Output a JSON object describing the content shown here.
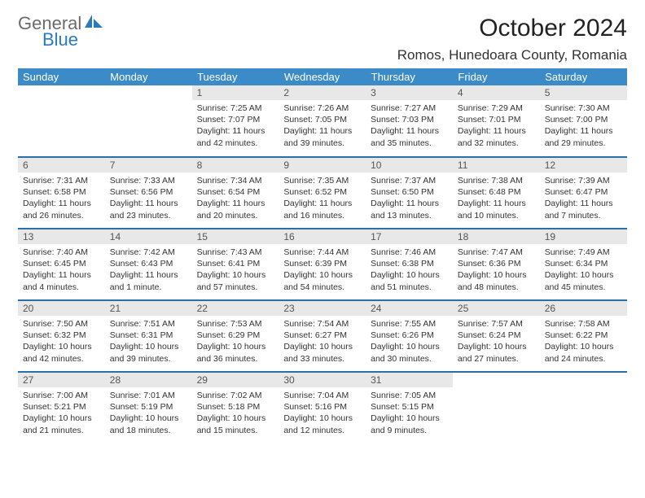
{
  "brand": {
    "line1": "General",
    "line2": "Blue",
    "text_color": "#6b6b6b",
    "accent_color": "#2a7ac0"
  },
  "title": "October 2024",
  "location": "Romos, Hunedoara County, Romania",
  "styling": {
    "header_bg": "#3b8bc9",
    "header_text": "#ffffff",
    "daynum_bg": "#e8e8e8",
    "daynum_text": "#555555",
    "body_text": "#333333",
    "row_border": "#2a6fa8",
    "page_bg": "#ffffff",
    "title_fontsize": 30,
    "location_fontsize": 17,
    "th_fontsize": 13,
    "daynum_fontsize": 12,
    "body_fontsize": 10.5
  },
  "weekdays": [
    "Sunday",
    "Monday",
    "Tuesday",
    "Wednesday",
    "Thursday",
    "Friday",
    "Saturday"
  ],
  "weeks": [
    [
      {
        "empty": true
      },
      {
        "empty": true
      },
      {
        "day": "1",
        "sunrise": "Sunrise: 7:25 AM",
        "sunset": "Sunset: 7:07 PM",
        "daylight1": "Daylight: 11 hours",
        "daylight2": "and 42 minutes."
      },
      {
        "day": "2",
        "sunrise": "Sunrise: 7:26 AM",
        "sunset": "Sunset: 7:05 PM",
        "daylight1": "Daylight: 11 hours",
        "daylight2": "and 39 minutes."
      },
      {
        "day": "3",
        "sunrise": "Sunrise: 7:27 AM",
        "sunset": "Sunset: 7:03 PM",
        "daylight1": "Daylight: 11 hours",
        "daylight2": "and 35 minutes."
      },
      {
        "day": "4",
        "sunrise": "Sunrise: 7:29 AM",
        "sunset": "Sunset: 7:01 PM",
        "daylight1": "Daylight: 11 hours",
        "daylight2": "and 32 minutes."
      },
      {
        "day": "5",
        "sunrise": "Sunrise: 7:30 AM",
        "sunset": "Sunset: 7:00 PM",
        "daylight1": "Daylight: 11 hours",
        "daylight2": "and 29 minutes."
      }
    ],
    [
      {
        "day": "6",
        "sunrise": "Sunrise: 7:31 AM",
        "sunset": "Sunset: 6:58 PM",
        "daylight1": "Daylight: 11 hours",
        "daylight2": "and 26 minutes."
      },
      {
        "day": "7",
        "sunrise": "Sunrise: 7:33 AM",
        "sunset": "Sunset: 6:56 PM",
        "daylight1": "Daylight: 11 hours",
        "daylight2": "and 23 minutes."
      },
      {
        "day": "8",
        "sunrise": "Sunrise: 7:34 AM",
        "sunset": "Sunset: 6:54 PM",
        "daylight1": "Daylight: 11 hours",
        "daylight2": "and 20 minutes."
      },
      {
        "day": "9",
        "sunrise": "Sunrise: 7:35 AM",
        "sunset": "Sunset: 6:52 PM",
        "daylight1": "Daylight: 11 hours",
        "daylight2": "and 16 minutes."
      },
      {
        "day": "10",
        "sunrise": "Sunrise: 7:37 AM",
        "sunset": "Sunset: 6:50 PM",
        "daylight1": "Daylight: 11 hours",
        "daylight2": "and 13 minutes."
      },
      {
        "day": "11",
        "sunrise": "Sunrise: 7:38 AM",
        "sunset": "Sunset: 6:48 PM",
        "daylight1": "Daylight: 11 hours",
        "daylight2": "and 10 minutes."
      },
      {
        "day": "12",
        "sunrise": "Sunrise: 7:39 AM",
        "sunset": "Sunset: 6:47 PM",
        "daylight1": "Daylight: 11 hours",
        "daylight2": "and 7 minutes."
      }
    ],
    [
      {
        "day": "13",
        "sunrise": "Sunrise: 7:40 AM",
        "sunset": "Sunset: 6:45 PM",
        "daylight1": "Daylight: 11 hours",
        "daylight2": "and 4 minutes."
      },
      {
        "day": "14",
        "sunrise": "Sunrise: 7:42 AM",
        "sunset": "Sunset: 6:43 PM",
        "daylight1": "Daylight: 11 hours",
        "daylight2": "and 1 minute."
      },
      {
        "day": "15",
        "sunrise": "Sunrise: 7:43 AM",
        "sunset": "Sunset: 6:41 PM",
        "daylight1": "Daylight: 10 hours",
        "daylight2": "and 57 minutes."
      },
      {
        "day": "16",
        "sunrise": "Sunrise: 7:44 AM",
        "sunset": "Sunset: 6:39 PM",
        "daylight1": "Daylight: 10 hours",
        "daylight2": "and 54 minutes."
      },
      {
        "day": "17",
        "sunrise": "Sunrise: 7:46 AM",
        "sunset": "Sunset: 6:38 PM",
        "daylight1": "Daylight: 10 hours",
        "daylight2": "and 51 minutes."
      },
      {
        "day": "18",
        "sunrise": "Sunrise: 7:47 AM",
        "sunset": "Sunset: 6:36 PM",
        "daylight1": "Daylight: 10 hours",
        "daylight2": "and 48 minutes."
      },
      {
        "day": "19",
        "sunrise": "Sunrise: 7:49 AM",
        "sunset": "Sunset: 6:34 PM",
        "daylight1": "Daylight: 10 hours",
        "daylight2": "and 45 minutes."
      }
    ],
    [
      {
        "day": "20",
        "sunrise": "Sunrise: 7:50 AM",
        "sunset": "Sunset: 6:32 PM",
        "daylight1": "Daylight: 10 hours",
        "daylight2": "and 42 minutes."
      },
      {
        "day": "21",
        "sunrise": "Sunrise: 7:51 AM",
        "sunset": "Sunset: 6:31 PM",
        "daylight1": "Daylight: 10 hours",
        "daylight2": "and 39 minutes."
      },
      {
        "day": "22",
        "sunrise": "Sunrise: 7:53 AM",
        "sunset": "Sunset: 6:29 PM",
        "daylight1": "Daylight: 10 hours",
        "daylight2": "and 36 minutes."
      },
      {
        "day": "23",
        "sunrise": "Sunrise: 7:54 AM",
        "sunset": "Sunset: 6:27 PM",
        "daylight1": "Daylight: 10 hours",
        "daylight2": "and 33 minutes."
      },
      {
        "day": "24",
        "sunrise": "Sunrise: 7:55 AM",
        "sunset": "Sunset: 6:26 PM",
        "daylight1": "Daylight: 10 hours",
        "daylight2": "and 30 minutes."
      },
      {
        "day": "25",
        "sunrise": "Sunrise: 7:57 AM",
        "sunset": "Sunset: 6:24 PM",
        "daylight1": "Daylight: 10 hours",
        "daylight2": "and 27 minutes."
      },
      {
        "day": "26",
        "sunrise": "Sunrise: 7:58 AM",
        "sunset": "Sunset: 6:22 PM",
        "daylight1": "Daylight: 10 hours",
        "daylight2": "and 24 minutes."
      }
    ],
    [
      {
        "day": "27",
        "sunrise": "Sunrise: 7:00 AM",
        "sunset": "Sunset: 5:21 PM",
        "daylight1": "Daylight: 10 hours",
        "daylight2": "and 21 minutes."
      },
      {
        "day": "28",
        "sunrise": "Sunrise: 7:01 AM",
        "sunset": "Sunset: 5:19 PM",
        "daylight1": "Daylight: 10 hours",
        "daylight2": "and 18 minutes."
      },
      {
        "day": "29",
        "sunrise": "Sunrise: 7:02 AM",
        "sunset": "Sunset: 5:18 PM",
        "daylight1": "Daylight: 10 hours",
        "daylight2": "and 15 minutes."
      },
      {
        "day": "30",
        "sunrise": "Sunrise: 7:04 AM",
        "sunset": "Sunset: 5:16 PM",
        "daylight1": "Daylight: 10 hours",
        "daylight2": "and 12 minutes."
      },
      {
        "day": "31",
        "sunrise": "Sunrise: 7:05 AM",
        "sunset": "Sunset: 5:15 PM",
        "daylight1": "Daylight: 10 hours",
        "daylight2": "and 9 minutes."
      },
      {
        "empty": true
      },
      {
        "empty": true
      }
    ]
  ]
}
